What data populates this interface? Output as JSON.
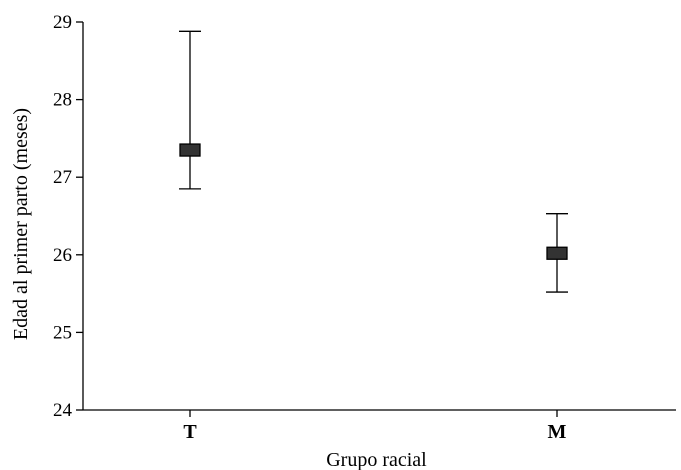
{
  "chart_data": {
    "type": "scatter",
    "title": "",
    "xlabel": "Grupo racial",
    "ylabel": "Edad al primer parto (meses)",
    "categories": [
      "T",
      "M"
    ],
    "series": [
      {
        "values": [
          27.35,
          26.02
        ],
        "error_low": [
          26.85,
          25.52
        ],
        "error_high": [
          28.88,
          26.53
        ]
      }
    ],
    "ylim": [
      24,
      29
    ],
    "yticks": [
      24,
      25,
      26,
      27,
      28,
      29
    ],
    "ytick_labels": [
      "24",
      "25",
      "26",
      "27",
      "28",
      "29"
    ],
    "grid": false,
    "legend": "none",
    "marker": "square",
    "marker_color": "#333333",
    "line_color": "#000000"
  }
}
